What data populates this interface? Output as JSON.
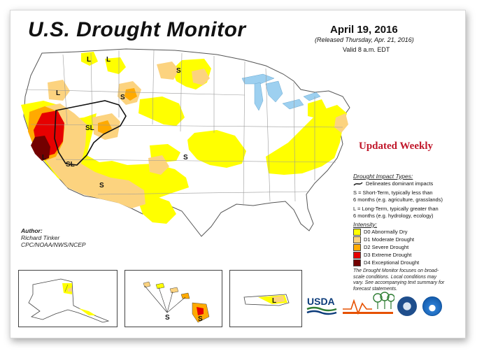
{
  "title": "U.S. Drought Monitor",
  "date": "April 19, 2016",
  "released": "(Released Thursday, Apr. 21, 2016)",
  "valid": "Valid 8 a.m. EDT",
  "updated_weekly": "Updated Weekly",
  "colors": {
    "d0": "#ffff00",
    "d1": "#fcd37f",
    "d2": "#ffaa00",
    "d3": "#e60000",
    "d4": "#730000",
    "water": "#9dd0f0",
    "state_line": "#9a9a9a"
  },
  "impact": {
    "header": "Drought Impact Types:",
    "delineates": "Delineates dominant impacts",
    "s_line1": "S = Short-Term, typically less than",
    "s_line2": "6 months (e.g. agriculture, grasslands)",
    "l_line1": "L = Long-Term, typically greater than",
    "l_line2": "6 months (e.g. hydrology, ecology)"
  },
  "intensity": {
    "header": "Intensity:",
    "items": [
      {
        "label": "D0 Abnormally Dry",
        "color": "#ffff00"
      },
      {
        "label": "D1 Moderate Drought",
        "color": "#fcd37f"
      },
      {
        "label": "D2 Severe Drought",
        "color": "#ffaa00"
      },
      {
        "label": "D3 Extreme Drought",
        "color": "#e60000"
      },
      {
        "label": "D4 Exceptional Drought",
        "color": "#730000"
      }
    ]
  },
  "author": {
    "label": "Author:",
    "name": "Richard Tinker",
    "org": "CPC/NOAA/NWS/NCEP"
  },
  "note": {
    "line1": "The Drought Monitor focuses on broad-",
    "line2": "scale conditions. Local conditions may",
    "line3": "vary. See accompanying text summary for",
    "line4": "forecast statements."
  },
  "map_labels": {
    "l": "L",
    "s": "S",
    "sl": "SL"
  },
  "logos": {
    "usda": "USDA"
  }
}
